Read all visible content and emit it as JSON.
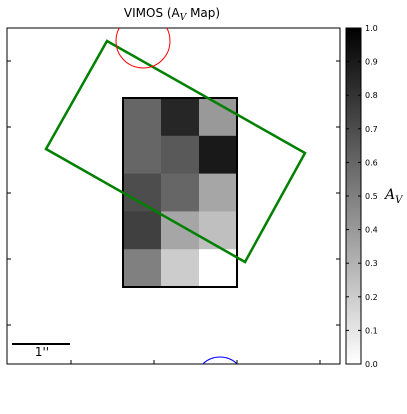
{
  "chart_data": {
    "type": "heatmap",
    "title": "VIMOS (A",
    "title_sub": "V",
    "title_tail": " Map)",
    "colorbar": {
      "label": "A",
      "label_sub": "V",
      "range": [
        0.0,
        1.0
      ],
      "ticks": [
        "0.0",
        "0.1",
        "0.2",
        "0.3",
        "0.4",
        "0.5",
        "0.6",
        "0.7",
        "0.8",
        "0.9",
        "1.0"
      ],
      "colormap": "gray_reversed"
    },
    "grid": {
      "rows": 5,
      "cols": 3,
      "values": [
        [
          0.6,
          0.85,
          0.4
        ],
        [
          0.6,
          0.65,
          0.9
        ],
        [
          0.7,
          0.6,
          0.35
        ],
        [
          0.75,
          0.35,
          0.25
        ],
        [
          0.5,
          0.2,
          0.0
        ]
      ]
    },
    "scale_bar": {
      "label": "1''"
    },
    "overlays": {
      "rectangle_color": "#008000",
      "circle_top_color": "#ff0000",
      "circle_bottom_color": "#0000ff",
      "grid_border_color": "#000000"
    },
    "grid_on": false,
    "legend": "none"
  }
}
